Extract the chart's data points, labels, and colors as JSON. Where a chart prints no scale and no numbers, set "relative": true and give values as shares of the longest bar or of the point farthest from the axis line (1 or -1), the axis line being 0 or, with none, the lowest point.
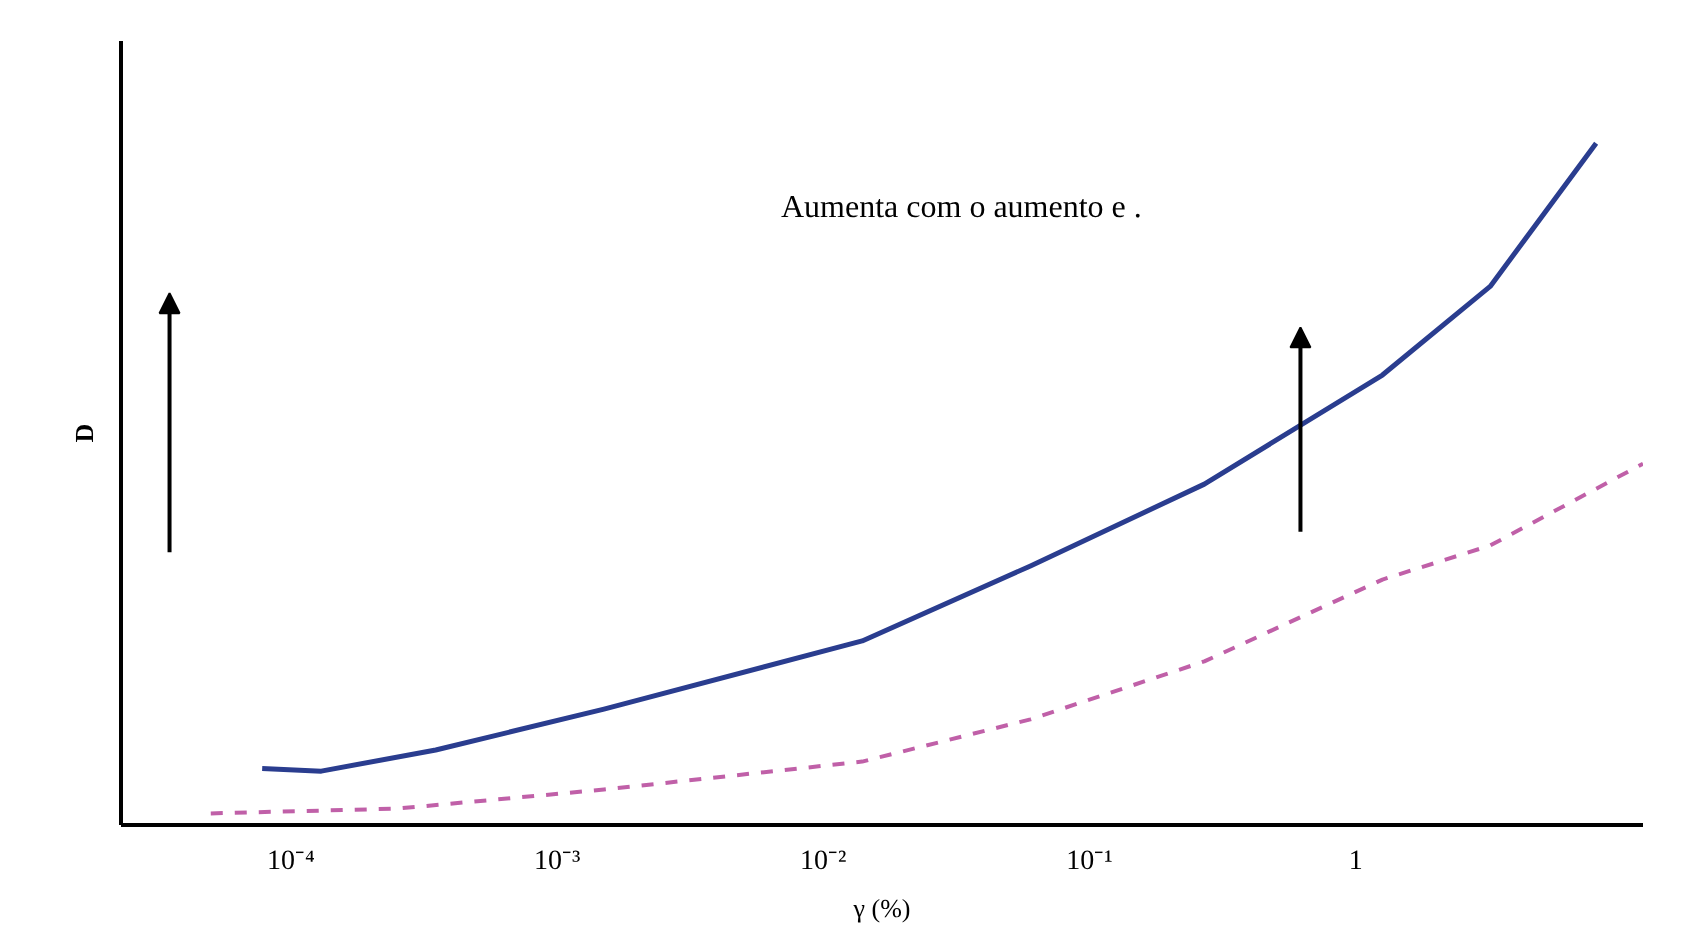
{
  "chart_data": {
    "type": "line",
    "relative": true,
    "ylabel": "D",
    "xlabel": "γ (%)",
    "log": "x",
    "xlim": [
      2.3e-05,
      12
    ],
    "xticks": [
      {
        "value": 0.0001,
        "label": "10⁻⁴"
      },
      {
        "value": 0.001,
        "label": "10⁻³"
      },
      {
        "value": 0.01,
        "label": "10⁻²"
      },
      {
        "value": 0.1,
        "label": "10⁻¹"
      },
      1
    ],
    "annotations": [
      "Aumenta com o aumento e ."
    ],
    "grid": false,
    "series": [
      {
        "color": "#2a3d8f",
        "line_style": "solid",
        "x": [
          7.8e-05,
          0.00013,
          0.00035,
          0.0015,
          0.014,
          0.06,
          0.27,
          1.26,
          3.2,
          8
        ],
        "values": [
          0.083,
          0.079,
          0.11,
          0.17,
          0.27,
          0.38,
          0.5,
          0.66,
          0.79,
          1.0
        ]
      },
      {
        "color": "#c060a8",
        "line_style": "dashed",
        "x": [
          5e-05,
          0.00025,
          0.0015,
          0.014,
          0.06,
          0.27,
          1.26,
          3.2,
          12
        ],
        "values": [
          0.017,
          0.024,
          0.052,
          0.093,
          0.155,
          0.24,
          0.36,
          0.41,
          0.53
        ]
      }
    ]
  }
}
